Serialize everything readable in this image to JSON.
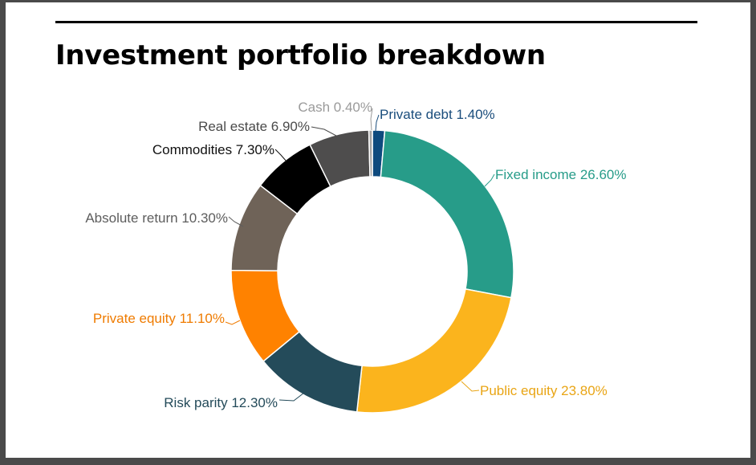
{
  "title": "Investment portfolio breakdown",
  "chart_data": {
    "type": "pie",
    "title": "Investment portfolio breakdown",
    "donut": true,
    "slices": [
      {
        "label": "Private debt",
        "value": 1.4,
        "display": "Private debt 1.40%",
        "color": "#0e4a7e"
      },
      {
        "label": "Fixed income",
        "value": 26.6,
        "display": "Fixed income 26.60%",
        "color": "#279c89"
      },
      {
        "label": "Public equity",
        "value": 23.8,
        "display": "Public equity 23.80%",
        "color": "#fbb41d"
      },
      {
        "label": "Risk parity",
        "value": 12.3,
        "display": "Risk parity 12.30%",
        "color": "#244b5a"
      },
      {
        "label": "Private equity",
        "value": 11.1,
        "display": "Private equity 11.10%",
        "color": "#ff8200"
      },
      {
        "label": "Absolute return",
        "value": 10.3,
        "display": "Absolute return 10.30%",
        "color": "#6f6358"
      },
      {
        "label": "Commodities",
        "value": 7.3,
        "display": "Commodities 7.30%",
        "color": "#000000"
      },
      {
        "label": "Real estate",
        "value": 6.9,
        "display": "Real estate 6.90%",
        "color": "#4e4d4d"
      },
      {
        "label": "Cash",
        "value": 0.4,
        "display": "Cash 0.40%",
        "color": "#a5a5a5"
      }
    ],
    "label_colors": {
      "Private debt": "#1a4d7c",
      "Fixed income": "#279c89",
      "Public equity": "#e9a515",
      "Risk parity": "#244b5a",
      "Private equity": "#ef7b00",
      "Absolute return": "#5d5d5d",
      "Commodities": "#111111",
      "Real estate": "#4a4a4a",
      "Cash": "#9a9a9a"
    }
  }
}
